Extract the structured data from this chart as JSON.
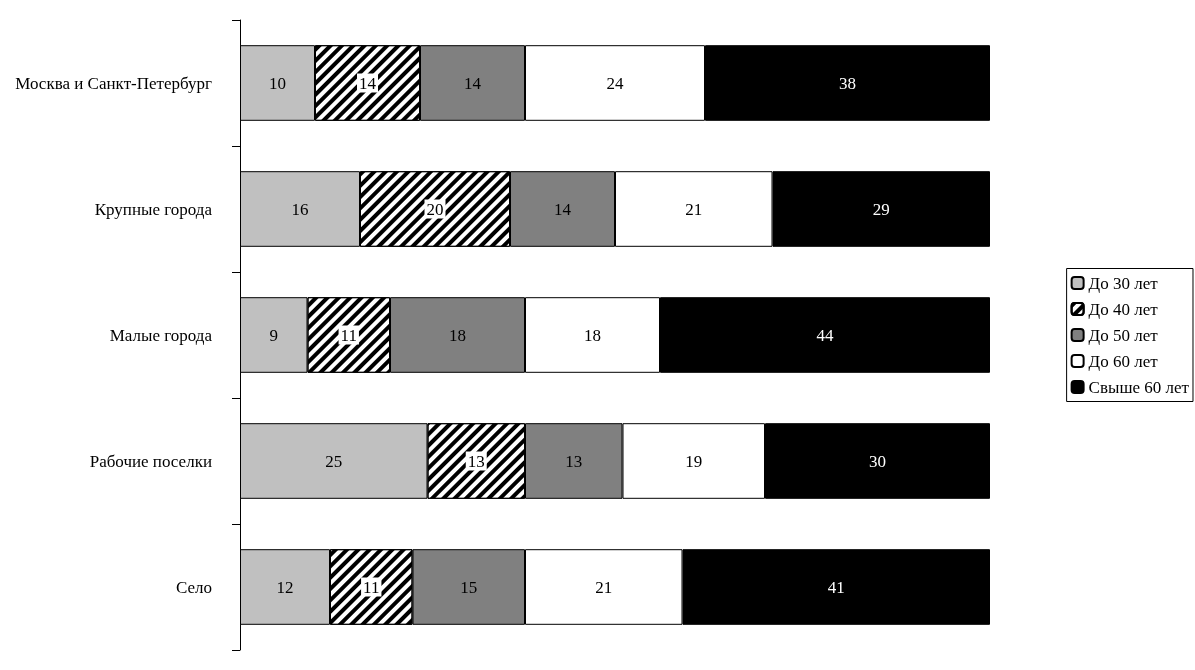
{
  "chart_data": {
    "type": "bar",
    "orientation": "horizontal",
    "stacked": true,
    "data_labels": true,
    "legend": "right",
    "xlim": [
      0,
      100
    ],
    "categories": [
      "Москва и Санкт-Петербург",
      "Крупные города",
      "Малые города",
      "Рабочие поселки",
      "Село"
    ],
    "series": [
      {
        "name": "До 30 лет",
        "color": "#c0c0c0",
        "values": [
          10,
          16,
          9,
          25,
          12
        ]
      },
      {
        "name": "До 40 лет",
        "color": "#ffffff",
        "values": [
          14,
          20,
          11,
          13,
          11
        ]
      },
      {
        "name": "До 50 лет",
        "color": "#808080",
        "values": [
          14,
          14,
          18,
          13,
          15
        ]
      },
      {
        "name": "До 60 лет",
        "color": "#ffffff",
        "values": [
          24,
          21,
          18,
          19,
          21
        ]
      },
      {
        "name": "Свыше 60 лет",
        "color": "#000000",
        "values": [
          38,
          29,
          44,
          30,
          41
        ]
      }
    ]
  }
}
